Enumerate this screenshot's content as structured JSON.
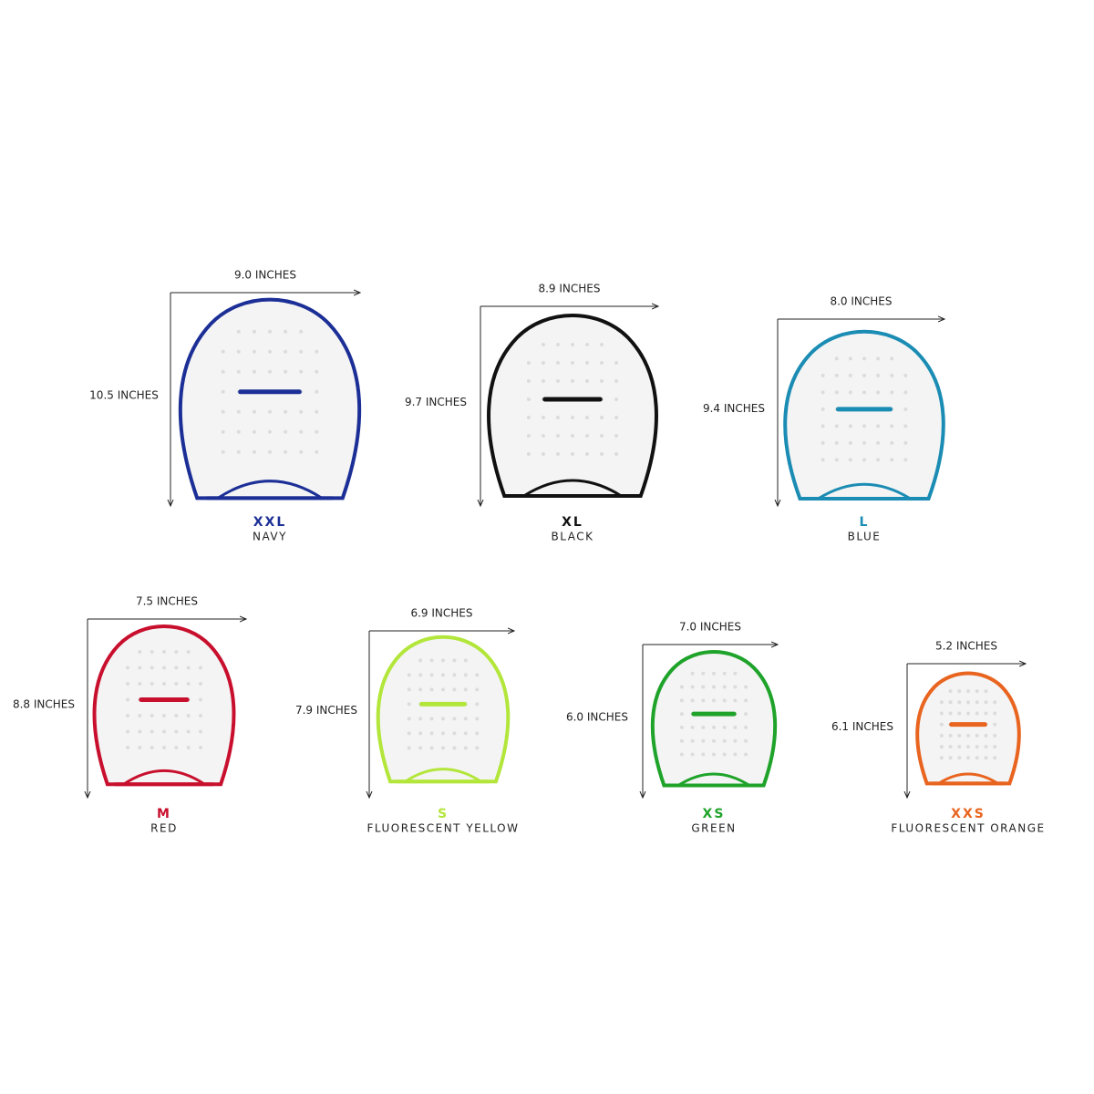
{
  "items": [
    {
      "size": "XXL",
      "color_name": "NAVY",
      "width": "9.0 INCHES",
      "height": "10.5 INCHES",
      "color": "#1c2f96"
    },
    {
      "size": "XL",
      "color_name": "BLACK",
      "width": "8.9 INCHES",
      "height": "9.7 INCHES",
      "color": "#111111"
    },
    {
      "size": "L",
      "color_name": "BLUE",
      "width": "8.0 INCHES",
      "height": "9.4 INCHES",
      "color": "#1b8cb3"
    },
    {
      "size": "M",
      "color_name": "RED",
      "width": "7.5 INCHES",
      "height": "8.8 INCHES",
      "color": "#c8102e"
    },
    {
      "size": "S",
      "color_name": "FLUORESCENT YELLOW",
      "width": "6.9 INCHES",
      "height": "7.9 INCHES",
      "color": "#b3e63a"
    },
    {
      "size": "XS",
      "color_name": "GREEN",
      "width": "7.0 INCHES",
      "height": "6.0 INCHES",
      "color": "#1fa32a"
    },
    {
      "size": "XXS",
      "color_name": "FLUORESCENT ORANGE",
      "width": "5.2 INCHES",
      "height": "6.1 INCHES",
      "color": "#e8641f"
    }
  ]
}
